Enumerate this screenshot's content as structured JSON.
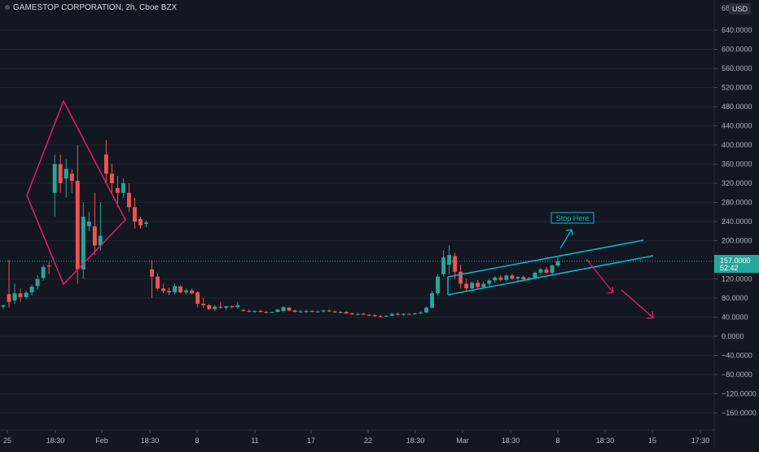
{
  "header": {
    "symbol": "GAMESTOP CORPORATION, 2h, Cboe BZX",
    "currency": "USD",
    "axis_top_label": "68"
  },
  "price_label": {
    "value": "157.0000",
    "countdown": "52:42"
  },
  "annotation": {
    "stop_label": "Stop Here"
  },
  "colors": {
    "background": "#131722",
    "up": "#26a69a",
    "down": "#ef5350",
    "pattern": "#e91e63",
    "channel": "#00bcd4",
    "axis_text": "#b2b5be",
    "grid": "#1f2330"
  },
  "chart_data": {
    "type": "candlestick",
    "ylim": [
      -180,
      690
    ],
    "yticks": [
      "640.0000",
      "600.0000",
      "560.0000",
      "520.0000",
      "480.0000",
      "440.0000",
      "400.0000",
      "360.0000",
      "320.0000",
      "280.0000",
      "240.0000",
      "200.0000",
      "157.0000",
      "120.0000",
      "80.0000",
      "40.0000",
      "0.0000",
      "−40.0000",
      "−80.0000",
      "−120.0000",
      "−160.0000"
    ],
    "ytick_values": [
      640,
      600,
      560,
      520,
      480,
      440,
      400,
      360,
      320,
      280,
      240,
      200,
      157,
      120,
      80,
      40,
      0,
      -40,
      -80,
      -120,
      -160
    ],
    "xticks": [
      "25",
      "18:30",
      "Feb",
      "18:30",
      "8",
      "11",
      "17",
      "22",
      "18:30",
      "Mar",
      "18:30",
      "8",
      "18:30",
      "15",
      "17:30"
    ],
    "last_price": 157,
    "candles": [
      {
        "o": 62,
        "h": 66,
        "l": 58,
        "c": 65
      },
      {
        "o": 88,
        "h": 160,
        "l": 60,
        "c": 72
      },
      {
        "o": 75,
        "h": 110,
        "l": 68,
        "c": 90
      },
      {
        "o": 90,
        "h": 100,
        "l": 72,
        "c": 82
      },
      {
        "o": 82,
        "h": 95,
        "l": 78,
        "c": 91
      },
      {
        "o": 92,
        "h": 108,
        "l": 85,
        "c": 104
      },
      {
        "o": 105,
        "h": 128,
        "l": 98,
        "c": 120
      },
      {
        "o": 122,
        "h": 150,
        "l": 116,
        "c": 145
      },
      {
        "o": 148,
        "h": 155,
        "l": 130,
        "c": 146
      },
      {
        "o": 300,
        "h": 380,
        "l": 250,
        "c": 360
      },
      {
        "o": 360,
        "h": 380,
        "l": 300,
        "c": 320
      },
      {
        "o": 330,
        "h": 370,
        "l": 290,
        "c": 350
      },
      {
        "o": 340,
        "h": 350,
        "l": 300,
        "c": 325
      },
      {
        "o": 325,
        "h": 400,
        "l": 110,
        "c": 140
      },
      {
        "o": 140,
        "h": 280,
        "l": 120,
        "c": 250
      },
      {
        "o": 230,
        "h": 260,
        "l": 220,
        "c": 240
      },
      {
        "o": 230,
        "h": 300,
        "l": 170,
        "c": 190
      },
      {
        "o": 190,
        "h": 280,
        "l": 180,
        "c": 210
      },
      {
        "o": 380,
        "h": 410,
        "l": 320,
        "c": 340
      },
      {
        "o": 340,
        "h": 360,
        "l": 300,
        "c": 320
      },
      {
        "o": 310,
        "h": 335,
        "l": 270,
        "c": 300
      },
      {
        "o": 300,
        "h": 330,
        "l": 290,
        "c": 320
      },
      {
        "o": 300,
        "h": 320,
        "l": 260,
        "c": 270
      },
      {
        "o": 270,
        "h": 290,
        "l": 225,
        "c": 240
      },
      {
        "o": 245,
        "h": 250,
        "l": 225,
        "c": 232
      },
      {
        "o": 235,
        "h": 242,
        "l": 228,
        "c": 238
      },
      {
        "o": 140,
        "h": 160,
        "l": 80,
        "c": 125
      },
      {
        "o": 125,
        "h": 132,
        "l": 95,
        "c": 100
      },
      {
        "o": 100,
        "h": 110,
        "l": 90,
        "c": 95
      },
      {
        "o": 95,
        "h": 102,
        "l": 86,
        "c": 92
      },
      {
        "o": 92,
        "h": 110,
        "l": 88,
        "c": 105
      },
      {
        "o": 104,
        "h": 107,
        "l": 90,
        "c": 92
      },
      {
        "o": 92,
        "h": 100,
        "l": 88,
        "c": 96
      },
      {
        "o": 96,
        "h": 100,
        "l": 88,
        "c": 90
      },
      {
        "o": 92,
        "h": 95,
        "l": 60,
        "c": 68
      },
      {
        "o": 68,
        "h": 80,
        "l": 60,
        "c": 65
      },
      {
        "o": 65,
        "h": 68,
        "l": 55,
        "c": 57
      },
      {
        "o": 57,
        "h": 65,
        "l": 53,
        "c": 62
      },
      {
        "o": 62,
        "h": 72,
        "l": 57,
        "c": 60
      },
      {
        "o": 60,
        "h": 64,
        "l": 55,
        "c": 63
      },
      {
        "o": 63,
        "h": 65,
        "l": 58,
        "c": 61
      },
      {
        "o": 61,
        "h": 72,
        "l": 58,
        "c": 65
      },
      {
        "o": 55,
        "h": 58,
        "l": 52,
        "c": 53
      },
      {
        "o": 53,
        "h": 56,
        "l": 50,
        "c": 52
      },
      {
        "o": 52,
        "h": 55,
        "l": 49,
        "c": 53
      },
      {
        "o": 53,
        "h": 56,
        "l": 50,
        "c": 51
      },
      {
        "o": 51,
        "h": 53,
        "l": 48,
        "c": 50
      },
      {
        "o": 50,
        "h": 52,
        "l": 49,
        "c": 51
      },
      {
        "o": 51,
        "h": 57,
        "l": 50,
        "c": 56
      },
      {
        "o": 53,
        "h": 63,
        "l": 50,
        "c": 61
      },
      {
        "o": 60,
        "h": 62,
        "l": 52,
        "c": 54
      },
      {
        "o": 54,
        "h": 56,
        "l": 50,
        "c": 51
      },
      {
        "o": 51,
        "h": 55,
        "l": 49,
        "c": 52
      },
      {
        "o": 52,
        "h": 55,
        "l": 49,
        "c": 53
      },
      {
        "o": 53,
        "h": 55,
        "l": 50,
        "c": 51
      },
      {
        "o": 51,
        "h": 54,
        "l": 49,
        "c": 52
      },
      {
        "o": 52,
        "h": 56,
        "l": 50,
        "c": 54
      },
      {
        "o": 54,
        "h": 57,
        "l": 51,
        "c": 52
      },
      {
        "o": 52,
        "h": 54,
        "l": 49,
        "c": 50
      },
      {
        "o": 50,
        "h": 53,
        "l": 48,
        "c": 51
      },
      {
        "o": 51,
        "h": 53,
        "l": 47,
        "c": 48
      },
      {
        "o": 48,
        "h": 50,
        "l": 45,
        "c": 46
      },
      {
        "o": 46,
        "h": 49,
        "l": 44,
        "c": 47
      },
      {
        "o": 47,
        "h": 49,
        "l": 45,
        "c": 45
      },
      {
        "o": 45,
        "h": 47,
        "l": 42,
        "c": 44
      },
      {
        "o": 44,
        "h": 46,
        "l": 41,
        "c": 42
      },
      {
        "o": 42,
        "h": 45,
        "l": 40,
        "c": 41
      },
      {
        "o": 41,
        "h": 44,
        "l": 40,
        "c": 43
      },
      {
        "o": 43,
        "h": 49,
        "l": 42,
        "c": 47
      },
      {
        "o": 47,
        "h": 50,
        "l": 44,
        "c": 45
      },
      {
        "o": 45,
        "h": 48,
        "l": 43,
        "c": 47
      },
      {
        "o": 47,
        "h": 49,
        "l": 45,
        "c": 46
      },
      {
        "o": 46,
        "h": 49,
        "l": 45,
        "c": 48
      },
      {
        "o": 48,
        "h": 52,
        "l": 47,
        "c": 50
      },
      {
        "o": 50,
        "h": 62,
        "l": 49,
        "c": 60
      },
      {
        "o": 60,
        "h": 95,
        "l": 58,
        "c": 90
      },
      {
        "o": 90,
        "h": 130,
        "l": 85,
        "c": 125
      },
      {
        "o": 130,
        "h": 180,
        "l": 125,
        "c": 165
      },
      {
        "o": 150,
        "h": 190,
        "l": 130,
        "c": 170
      },
      {
        "o": 168,
        "h": 175,
        "l": 120,
        "c": 135
      },
      {
        "o": 135,
        "h": 150,
        "l": 100,
        "c": 110
      },
      {
        "o": 110,
        "h": 120,
        "l": 95,
        "c": 100
      },
      {
        "o": 100,
        "h": 115,
        "l": 98,
        "c": 112
      },
      {
        "o": 112,
        "h": 118,
        "l": 100,
        "c": 103
      },
      {
        "o": 103,
        "h": 115,
        "l": 100,
        "c": 110
      },
      {
        "o": 110,
        "h": 120,
        "l": 105,
        "c": 117
      },
      {
        "o": 117,
        "h": 126,
        "l": 112,
        "c": 123
      },
      {
        "o": 123,
        "h": 128,
        "l": 115,
        "c": 118
      },
      {
        "o": 118,
        "h": 130,
        "l": 115,
        "c": 127
      },
      {
        "o": 127,
        "h": 131,
        "l": 118,
        "c": 121
      },
      {
        "o": 121,
        "h": 126,
        "l": 116,
        "c": 124
      },
      {
        "o": 124,
        "h": 127,
        "l": 117,
        "c": 119
      },
      {
        "o": 119,
        "h": 124,
        "l": 116,
        "c": 122
      },
      {
        "o": 122,
        "h": 135,
        "l": 120,
        "c": 133
      },
      {
        "o": 133,
        "h": 143,
        "l": 128,
        "c": 140
      },
      {
        "o": 140,
        "h": 145,
        "l": 130,
        "c": 133
      },
      {
        "o": 133,
        "h": 150,
        "l": 130,
        "c": 148
      },
      {
        "o": 148,
        "h": 165,
        "l": 145,
        "c": 157
      }
    ]
  }
}
